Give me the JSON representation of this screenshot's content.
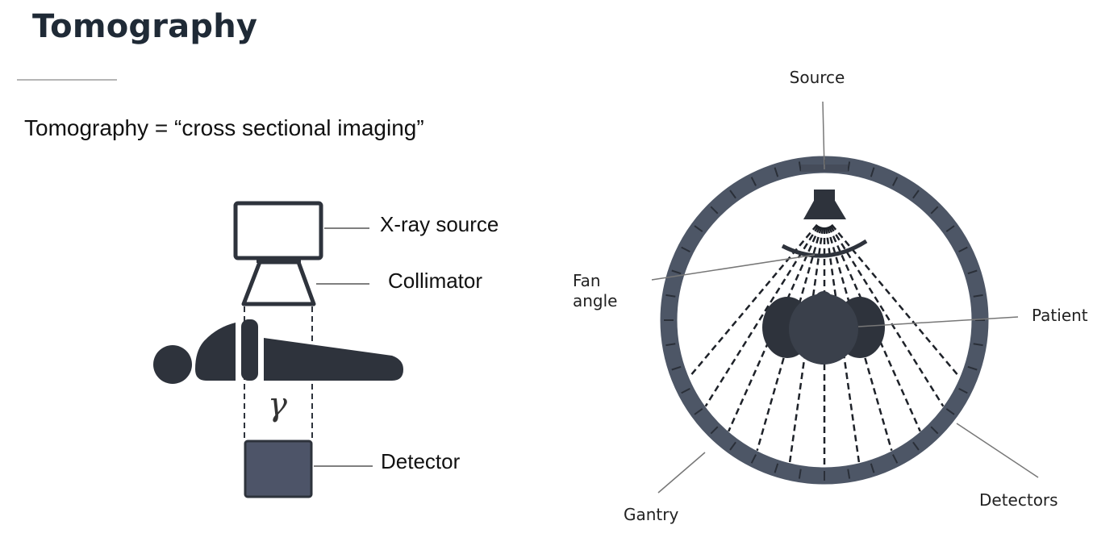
{
  "title": "Tomography",
  "subtitle": "Tomography = “cross sectional imaging”",
  "left_diagram": {
    "xray_source": "X-ray source",
    "collimator": "Collimator",
    "detector": "Detector",
    "gamma_symbol": "γ"
  },
  "right_diagram": {
    "source": "Source",
    "fan_angle_line1": "Fan",
    "fan_angle_line2": "angle",
    "patient": "Patient",
    "gantry": "Gantry",
    "detectors": "Detectors"
  },
  "colors": {
    "dark": "#2e333c",
    "gantry": "#4d5666",
    "detector_box": "#4d5468",
    "text": "#111111"
  }
}
